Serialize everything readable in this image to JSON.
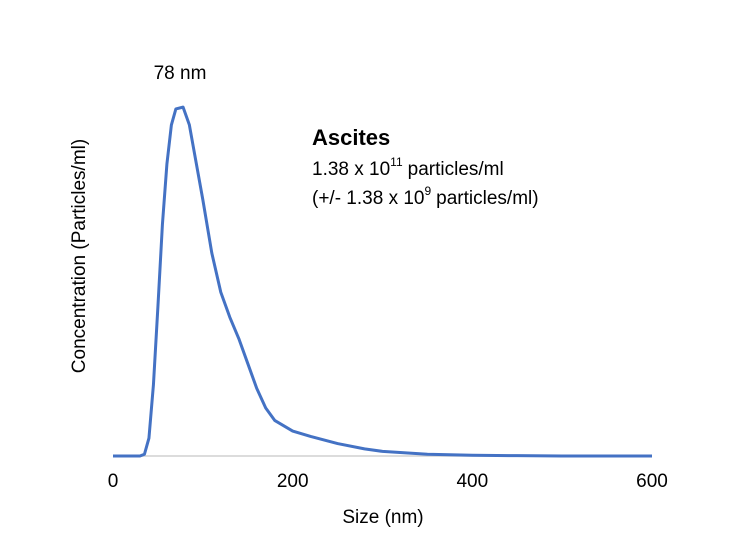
{
  "chart_data": {
    "type": "line",
    "x_label": "Size (nm)",
    "y_label": "Concentration (Particles/ml)",
    "peak_label": "78 nm",
    "sample": {
      "title": "Ascites",
      "concentration": {
        "base": "1.38 x 10",
        "exponent": "11",
        "unit": "particles/ml"
      },
      "error": {
        "open": "(+/- 1.38 x 10",
        "exponent": "9",
        "unit": "particles/ml)"
      }
    },
    "x": [
      0,
      30,
      35,
      40,
      45,
      50,
      55,
      60,
      65,
      70,
      78,
      85,
      90,
      100,
      110,
      120,
      130,
      140,
      150,
      160,
      170,
      180,
      200,
      220,
      250,
      280,
      300,
      350,
      400,
      450,
      500,
      600
    ],
    "values": [
      0,
      0,
      0.5,
      5,
      20,
      42,
      65,
      82,
      93,
      97.5,
      98,
      93,
      86,
      72,
      57,
      46,
      39,
      33,
      26,
      19,
      13.5,
      10,
      7,
      5.5,
      3.5,
      2,
      1.3,
      0.5,
      0.2,
      0.1,
      0,
      0
    ],
    "color": "#4472c4",
    "xlim": [
      0,
      600
    ],
    "xticks": [
      0,
      200,
      400,
      600
    ],
    "ylim": [
      0,
      100
    ],
    "grid": false
  }
}
